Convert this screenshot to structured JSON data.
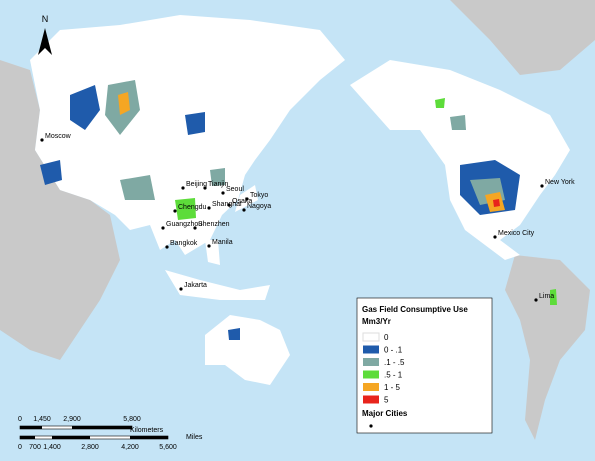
{
  "north": "N",
  "cities": [
    {
      "name": "Moscow"
    },
    {
      "name": "Beijing"
    },
    {
      "name": "Tianjin"
    },
    {
      "name": "Seoul"
    },
    {
      "name": "Tokyo"
    },
    {
      "name": "Osaka"
    },
    {
      "name": "Nagoya"
    },
    {
      "name": "Shanghai"
    },
    {
      "name": "Chengdu"
    },
    {
      "name": "Guangzhou"
    },
    {
      "name": "Shenzhen"
    },
    {
      "name": "Manila"
    },
    {
      "name": "Bangkok"
    },
    {
      "name": "Jakarta"
    },
    {
      "name": "New York"
    },
    {
      "name": "Mexico City"
    },
    {
      "name": "Lima"
    }
  ],
  "legend": {
    "title": "Gas Field Consumptive Use",
    "unit": "Mm3/Yr",
    "classes": [
      {
        "label": "0",
        "color": "#ffffff"
      },
      {
        "label": "0 - .1",
        "color": "#1f5bab"
      },
      {
        "label": ".1 - .5",
        "color": "#7fa9a3"
      },
      {
        "label": ".5 - 1",
        "color": "#5ddc3a"
      },
      {
        "label": "1 - 5",
        "color": "#f5a623"
      },
      {
        "label": "5",
        "color": "#e8241c"
      }
    ],
    "cities_label": "Major Cities"
  },
  "scale": {
    "km": [
      "0",
      "1,450",
      "2,900",
      "5,800"
    ],
    "km_unit": "Kilometers",
    "miles": [
      "0",
      "700",
      "1,400",
      "2,800",
      "4,200",
      "5,600"
    ],
    "miles_unit": "Miles"
  }
}
